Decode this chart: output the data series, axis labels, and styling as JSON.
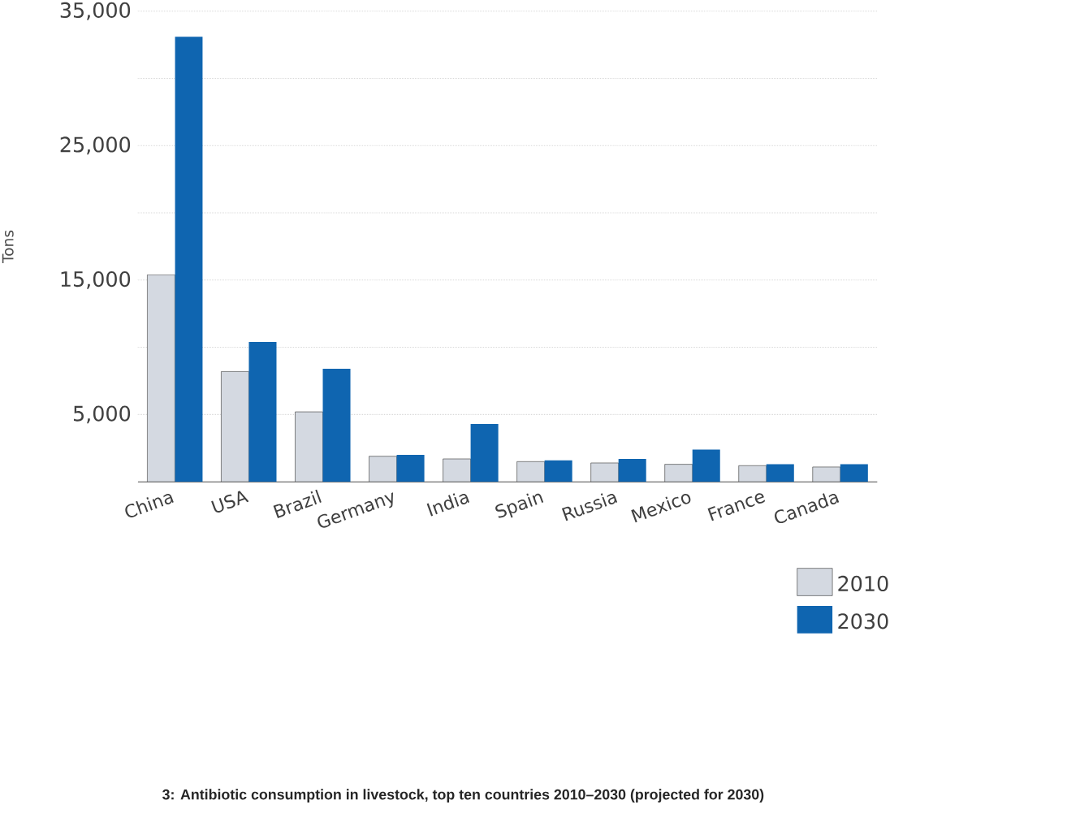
{
  "chart_data": {
    "type": "bar",
    "title": "3: Antibiotic consumption in livestock, top ten countries 2010–2030 (projected for 2030)",
    "ylabel": "Tons",
    "categories": [
      "China",
      "USA",
      "Brazil",
      "Germany",
      "India",
      "Spain",
      "Russia",
      "Mexico",
      "France",
      "Canada"
    ],
    "series": [
      {
        "name": "2010",
        "color": "#d4d9e1",
        "values": [
          15400,
          8200,
          5200,
          1900,
          1700,
          1500,
          1400,
          1300,
          1200,
          1100
        ]
      },
      {
        "name": "2030",
        "color": "#0f65b0",
        "values": [
          33100,
          10400,
          8400,
          2000,
          4300,
          1600,
          1700,
          2400,
          1300,
          1300
        ]
      }
    ],
    "ylim": [
      0,
      35000
    ],
    "yticks": [
      {
        "value": 5000,
        "label": "5,000"
      },
      {
        "value": 10000,
        "label": null
      },
      {
        "value": 15000,
        "label": "15,000"
      },
      {
        "value": 20000,
        "label": null
      },
      {
        "value": 25000,
        "label": "25,000"
      },
      {
        "value": 30000,
        "label": null
      },
      {
        "value": 35000,
        "label": "35,000"
      }
    ],
    "grid": "y",
    "legend": "bottom right"
  }
}
